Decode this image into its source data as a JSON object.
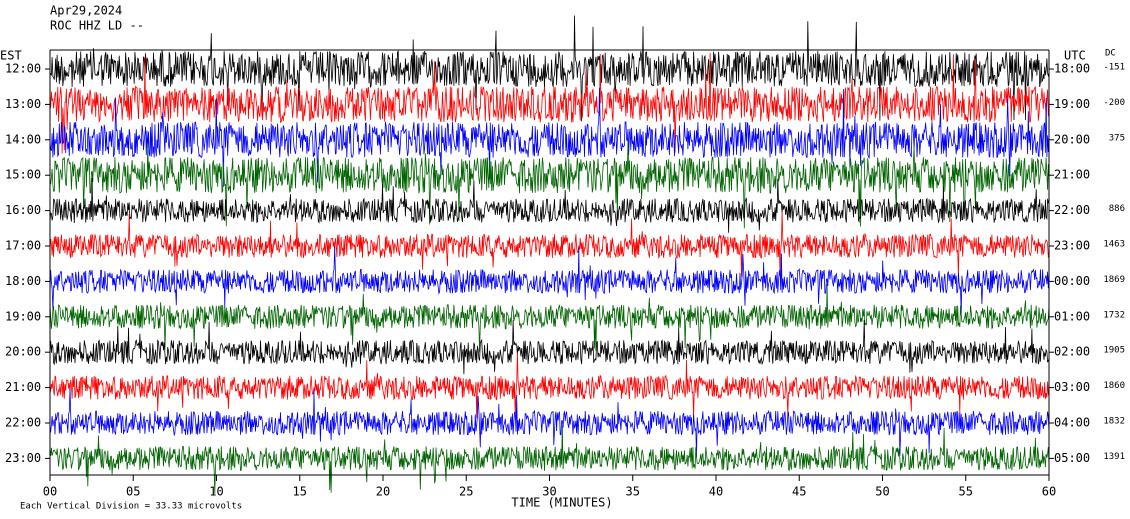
{
  "chart_data": {
    "type": "helicorder",
    "title": "Apr29,2024",
    "subtitle": "ROC HHZ LD --",
    "left_axis_label": "EST",
    "right_axis_label": "UTC",
    "dc_label": "DC",
    "x_label": "TIME (MINUTES)",
    "footnote": "Each Vertical Division = 33.33 microvolts",
    "est": [
      "12:00",
      "13:00",
      "14:00",
      "15:00",
      "16:00",
      "17:00",
      "18:00",
      "19:00",
      "20:00",
      "21:00",
      "22:00",
      "23:00"
    ],
    "utc": [
      "18:00",
      "19:00",
      "20:00",
      "21:00",
      "22:00",
      "23:00",
      "00:00",
      "01:00",
      "02:00",
      "03:00",
      "04:00",
      "05:00"
    ],
    "dc": [
      -151,
      -200,
      375,
      null,
      886,
      1463,
      1869,
      1732,
      1905,
      1860,
      1832,
      1391
    ],
    "colors": [
      "#000000",
      "#ff0000",
      "#0000ff",
      "#006400"
    ],
    "xlim": [
      0,
      60
    ],
    "xticks": [
      {
        "value": 0,
        "label": "00"
      },
      {
        "value": 5,
        "label": "05"
      },
      10,
      15,
      20,
      25,
      30,
      35,
      40,
      45,
      50,
      55,
      60
    ]
  }
}
